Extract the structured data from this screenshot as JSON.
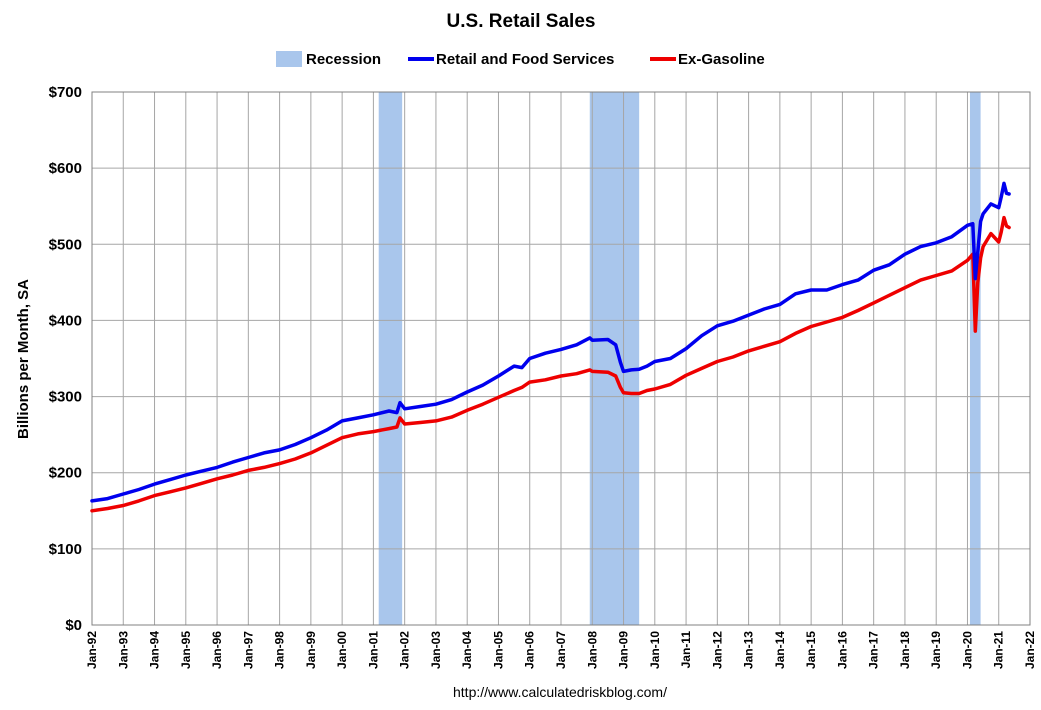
{
  "chart_data": {
    "type": "line",
    "title": "U.S. Retail Sales",
    "ylabel": "Billions per Month, SA",
    "xlabel": "",
    "source": "http://www.calculatedriskblog.com/",
    "ylim": [
      0,
      700
    ],
    "xlim": [
      1992,
      2022
    ],
    "y_ticks": [
      0,
      100,
      200,
      300,
      400,
      500,
      600,
      700
    ],
    "y_tick_labels": [
      "$0",
      "$100",
      "$200",
      "$300",
      "$400",
      "$500",
      "$600",
      "$700"
    ],
    "x_ticks": [
      1992,
      1993,
      1994,
      1995,
      1996,
      1997,
      1998,
      1999,
      2000,
      2001,
      2002,
      2003,
      2004,
      2005,
      2006,
      2007,
      2008,
      2009,
      2010,
      2011,
      2012,
      2013,
      2014,
      2015,
      2016,
      2017,
      2018,
      2019,
      2020,
      2021,
      2022
    ],
    "x_tick_labels": [
      "Jan-92",
      "Jan-93",
      "Jan-94",
      "Jan-95",
      "Jan-96",
      "Jan-97",
      "Jan-98",
      "Jan-99",
      "Jan-00",
      "Jan-01",
      "Jan-02",
      "Jan-03",
      "Jan-04",
      "Jan-05",
      "Jan-06",
      "Jan-07",
      "Jan-08",
      "Jan-09",
      "Jan-10",
      "Jan-11",
      "Jan-12",
      "Jan-13",
      "Jan-14",
      "Jan-15",
      "Jan-16",
      "Jan-17",
      "Jan-18",
      "Jan-19",
      "Jan-20",
      "Jan-21",
      "Jan-22"
    ],
    "grid": true,
    "legend_position": "top",
    "legend": [
      "Recession",
      "Retail and Food Services",
      "Ex-Gasoline"
    ],
    "recessions": [
      {
        "start": 2001.17,
        "end": 2001.92
      },
      {
        "start": 2007.92,
        "end": 2009.5
      },
      {
        "start": 2020.08,
        "end": 2020.42
      }
    ],
    "colors": {
      "recession": "#a9c6ec",
      "retail": "#0000ee",
      "ex_gasoline": "#ee0000",
      "grid": "#a6a6a6"
    },
    "series": [
      {
        "name": "Retail and Food Services",
        "x": [
          1992.0,
          1992.5,
          1993.0,
          1993.5,
          1994.0,
          1994.5,
          1995.0,
          1995.5,
          1996.0,
          1996.5,
          1997.0,
          1997.5,
          1998.0,
          1998.5,
          1999.0,
          1999.5,
          2000.0,
          2000.5,
          2001.0,
          2001.5,
          2001.75,
          2001.85,
          2002.0,
          2002.5,
          2003.0,
          2003.5,
          2004.0,
          2004.5,
          2005.0,
          2005.5,
          2005.75,
          2006.0,
          2006.5,
          2007.0,
          2007.5,
          2007.92,
          2008.0,
          2008.5,
          2008.75,
          2008.9,
          2009.0,
          2009.25,
          2009.5,
          2009.75,
          2010.0,
          2010.5,
          2011.0,
          2011.5,
          2012.0,
          2012.5,
          2013.0,
          2013.5,
          2014.0,
          2014.5,
          2015.0,
          2015.5,
          2016.0,
          2016.5,
          2017.0,
          2017.5,
          2018.0,
          2018.5,
          2019.0,
          2019.5,
          2020.0,
          2020.17,
          2020.25,
          2020.33,
          2020.42,
          2020.5,
          2020.75,
          2021.0,
          2021.08,
          2021.17,
          2021.25,
          2021.33
        ],
        "values": [
          163,
          166,
          172,
          178,
          185,
          191,
          197,
          202,
          207,
          214,
          220,
          226,
          230,
          237,
          246,
          256,
          268,
          272,
          276,
          281,
          279,
          292,
          284,
          287,
          290,
          296,
          306,
          315,
          327,
          340,
          338,
          350,
          357,
          362,
          368,
          377,
          374,
          375,
          368,
          345,
          333,
          335,
          336,
          340,
          346,
          350,
          363,
          380,
          393,
          399,
          407,
          415,
          421,
          435,
          440,
          440,
          447,
          453,
          466,
          473,
          487,
          497,
          502,
          510,
          525,
          527,
          455,
          490,
          530,
          540,
          553,
          548,
          562,
          580,
          567,
          566
        ]
      },
      {
        "name": "Ex-Gasoline",
        "x": [
          1992.0,
          1992.5,
          1993.0,
          1993.5,
          1994.0,
          1994.5,
          1995.0,
          1995.5,
          1996.0,
          1996.5,
          1997.0,
          1997.5,
          1998.0,
          1998.5,
          1999.0,
          1999.5,
          2000.0,
          2000.5,
          2001.0,
          2001.5,
          2001.75,
          2001.85,
          2002.0,
          2002.5,
          2003.0,
          2003.5,
          2004.0,
          2004.5,
          2005.0,
          2005.5,
          2005.75,
          2006.0,
          2006.5,
          2007.0,
          2007.5,
          2007.92,
          2008.0,
          2008.5,
          2008.75,
          2008.9,
          2009.0,
          2009.25,
          2009.5,
          2009.75,
          2010.0,
          2010.5,
          2011.0,
          2011.5,
          2012.0,
          2012.5,
          2013.0,
          2013.5,
          2014.0,
          2014.5,
          2015.0,
          2015.5,
          2016.0,
          2016.5,
          2017.0,
          2017.5,
          2018.0,
          2018.5,
          2019.0,
          2019.5,
          2020.0,
          2020.17,
          2020.25,
          2020.33,
          2020.42,
          2020.5,
          2020.75,
          2021.0,
          2021.08,
          2021.17,
          2021.25,
          2021.33
        ],
        "values": [
          150,
          153,
          157,
          163,
          170,
          175,
          180,
          186,
          192,
          197,
          203,
          207,
          212,
          218,
          226,
          236,
          246,
          251,
          254,
          258,
          260,
          272,
          264,
          266,
          268,
          273,
          282,
          290,
          299,
          308,
          312,
          319,
          322,
          327,
          330,
          335,
          333,
          332,
          327,
          312,
          305,
          304,
          304,
          308,
          310,
          316,
          328,
          337,
          346,
          352,
          360,
          366,
          372,
          383,
          392,
          398,
          404,
          413,
          423,
          433,
          443,
          453,
          459,
          465,
          479,
          487,
          386,
          450,
          482,
          497,
          514,
          503,
          516,
          535,
          524,
          522
        ]
      }
    ]
  }
}
